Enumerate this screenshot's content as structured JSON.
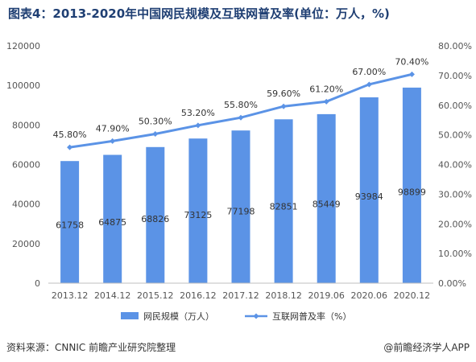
{
  "title": "图表4：2013-2020年中国网民规模及互联网普及率(单位：万人，%)",
  "footer": {
    "source": "资料来源：CNNIC 前瞻产业研究院整理",
    "brand": "@前瞻经济学人APP"
  },
  "colors": {
    "bar": "#5b93e6",
    "line": "#5b93e6",
    "title": "#1f3f73",
    "axis": "#bfbfbf"
  },
  "chart_data": {
    "type": "bar",
    "categories": [
      "2013.12",
      "2014.12",
      "2015.12",
      "2016.12",
      "2017.12",
      "2018.12",
      "2019.06",
      "2020.06",
      "2020.12"
    ],
    "series": [
      {
        "name": "网民规模（万人）",
        "type": "bar",
        "axis": "left",
        "values": [
          61758,
          64875,
          68826,
          73125,
          77198,
          82851,
          85449,
          93984,
          98899
        ]
      },
      {
        "name": "互联网普及率（%）",
        "type": "line",
        "axis": "right",
        "values": [
          45.8,
          47.9,
          50.3,
          53.2,
          55.8,
          59.6,
          61.2,
          67.0,
          70.4
        ],
        "labels": [
          "45.80%",
          "47.90%",
          "50.30%",
          "53.20%",
          "55.80%",
          "59.60%",
          "61.20%",
          "67.00%",
          "70.40%"
        ]
      }
    ],
    "ylim_left": [
      0,
      120000
    ],
    "yticks_left": [
      "0",
      "20000",
      "40000",
      "60000",
      "80000",
      "100000",
      "120000"
    ],
    "ylim_right": [
      0,
      80
    ],
    "yticks_right": [
      "0.00%",
      "10.00%",
      "20.00%",
      "30.00%",
      "40.00%",
      "50.00%",
      "60.00%",
      "70.00%",
      "80.00%"
    ],
    "grid": false,
    "legend": "bottom"
  }
}
